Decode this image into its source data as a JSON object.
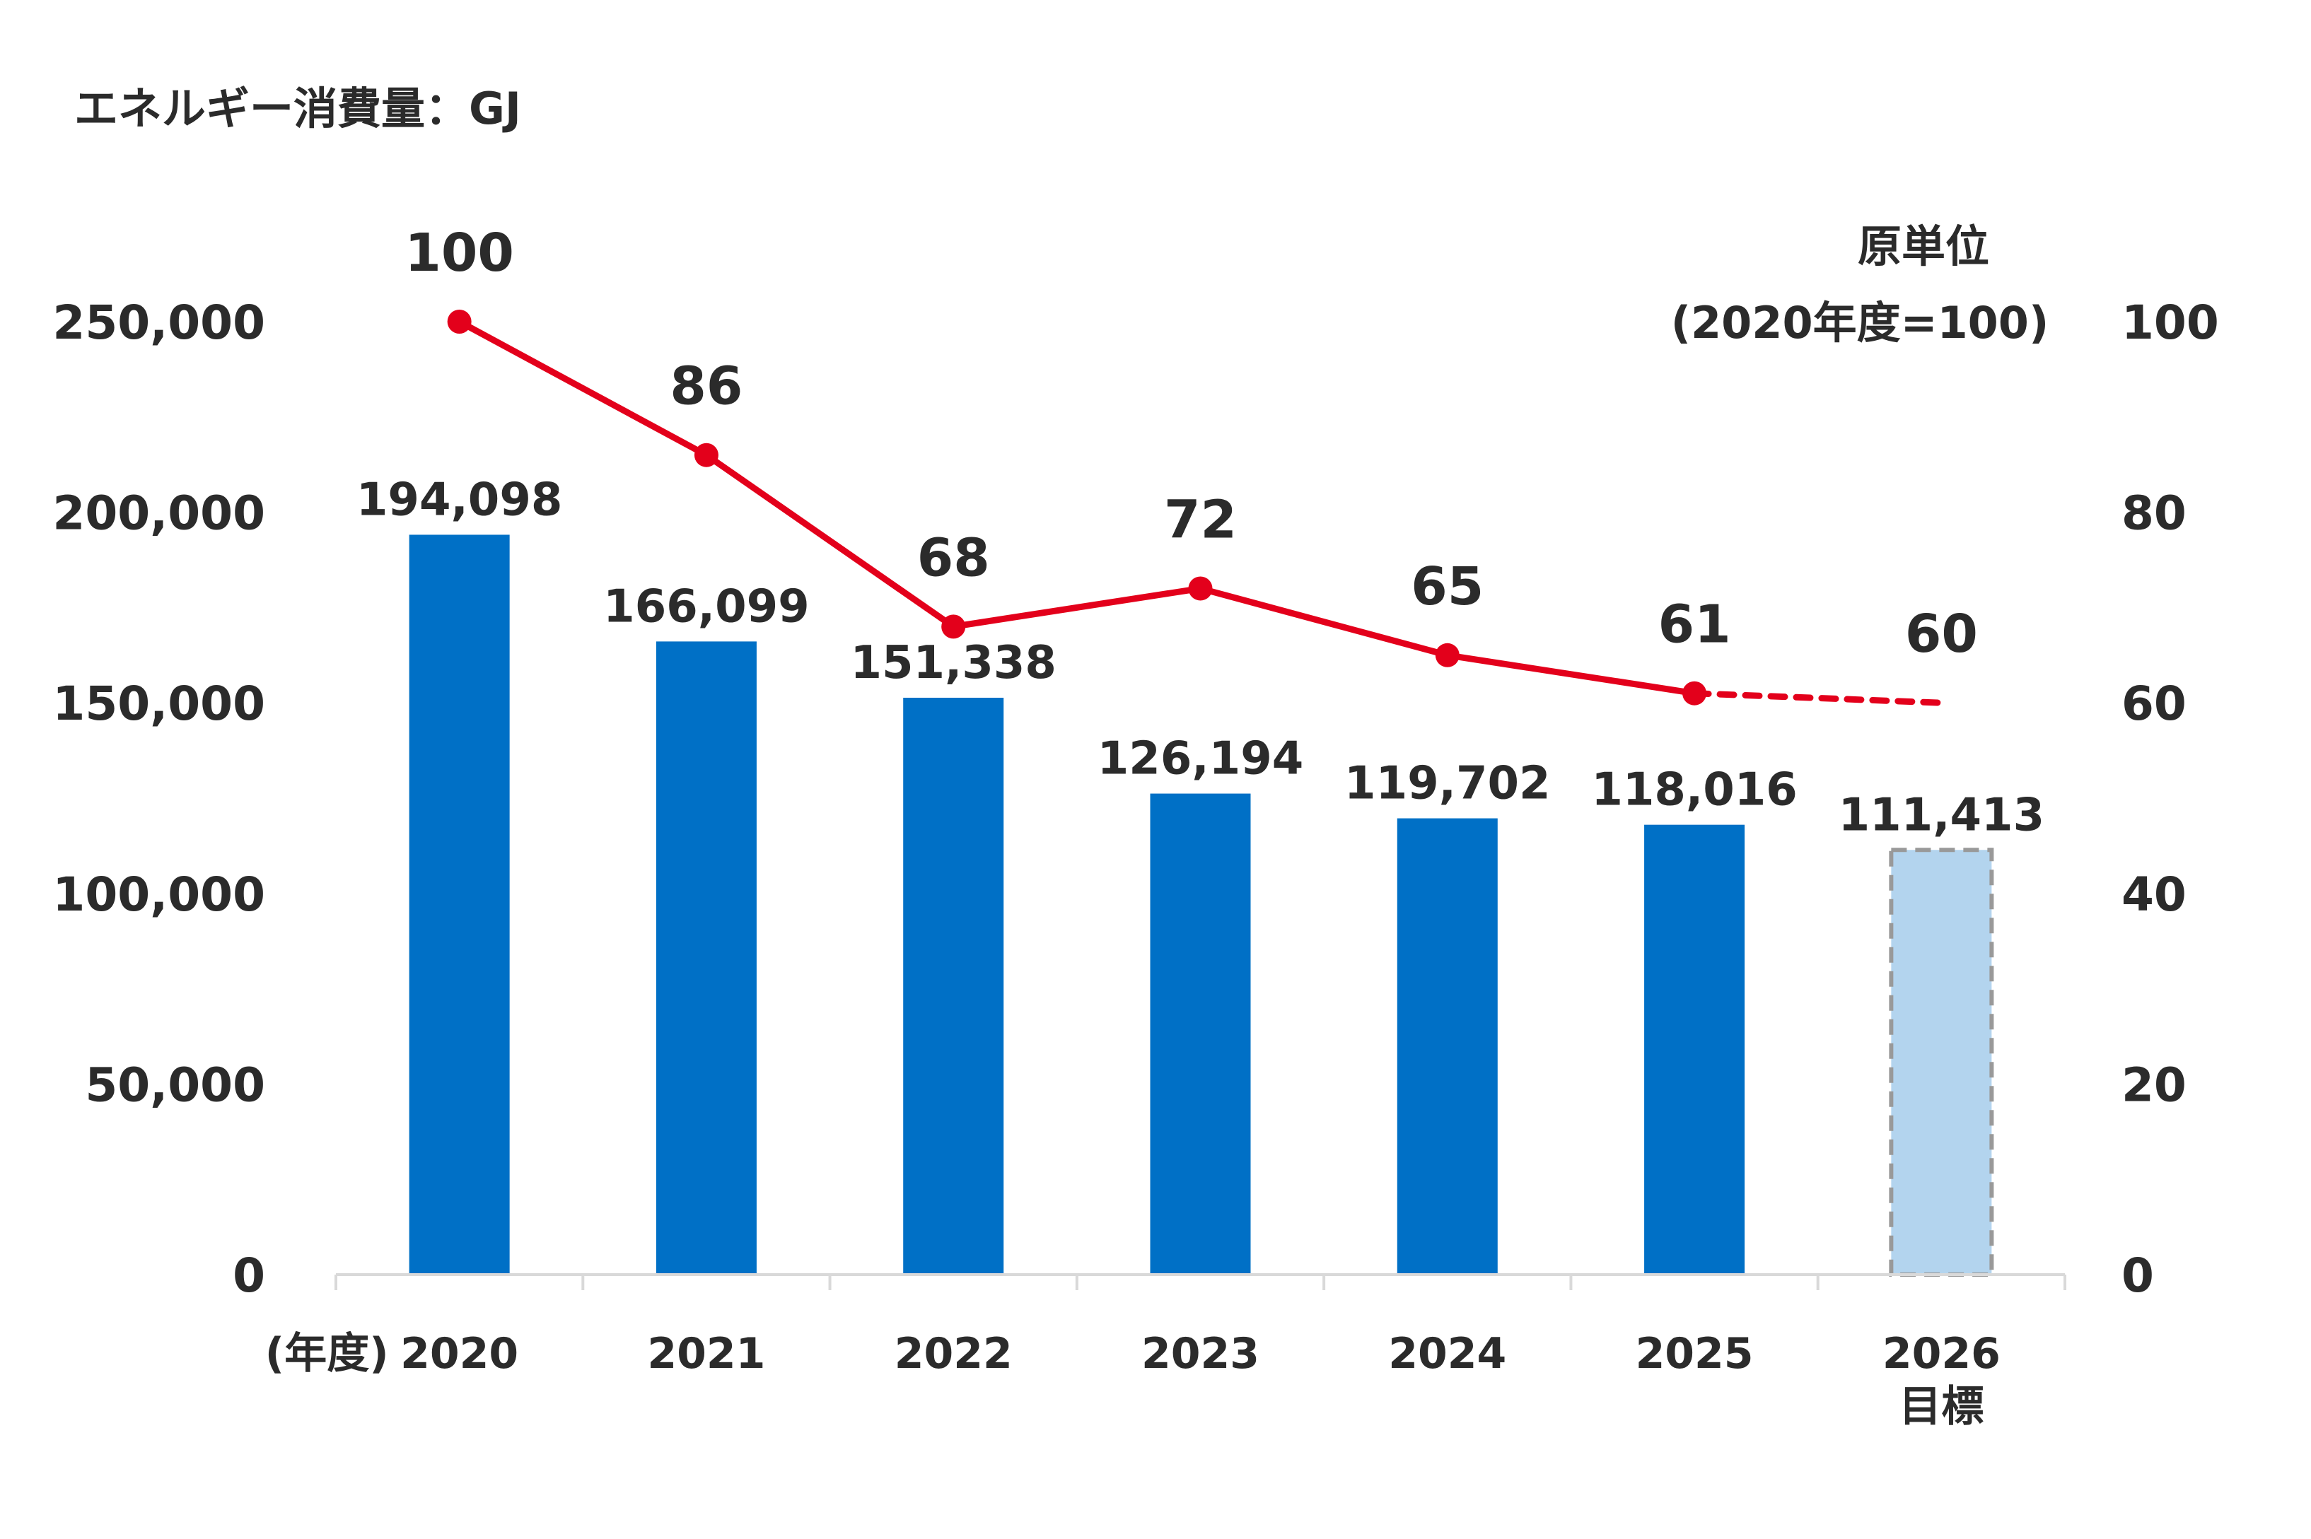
{
  "chart_data": {
    "type": "bar",
    "title": "エネルギー消費量：GJ",
    "xlabel_prefix": "(年度)",
    "categories": [
      "2020",
      "2021",
      "2022",
      "2023",
      "2024",
      "2025",
      "2026"
    ],
    "category_sublabels": [
      "",
      "",
      "",
      "",
      "",
      "",
      "目標"
    ],
    "ylim_left": [
      0,
      250000
    ],
    "yticks_left": [
      "0",
      "50,000",
      "100,000",
      "150,000",
      "200,000",
      "250,000"
    ],
    "ylim_right": [
      0,
      100
    ],
    "yticks_right": [
      "0",
      "20",
      "40",
      "60",
      "80",
      "100"
    ],
    "ylabel_right": [
      "原単位",
      "(2020年度=100)"
    ],
    "series": [
      {
        "type": "bar",
        "values": [
          194098,
          166099,
          151338,
          126194,
          119702,
          118016,
          111413
        ],
        "value_labels": [
          "194,098",
          "166,099",
          "151,338",
          "126,194",
          "119,702",
          "118,016",
          "111,413"
        ],
        "color": "#0070c6",
        "target_color": "#b3d4ee",
        "target_index": 6
      },
      {
        "type": "line",
        "axis": "right",
        "values": [
          100,
          86,
          68,
          72,
          65,
          61,
          60
        ],
        "value_labels": [
          "100",
          "86",
          "68",
          "72",
          "65",
          "61",
          "60"
        ],
        "color": "#e3001b",
        "dashed_from_index": 5
      }
    ],
    "grid": false,
    "legend": "none"
  }
}
